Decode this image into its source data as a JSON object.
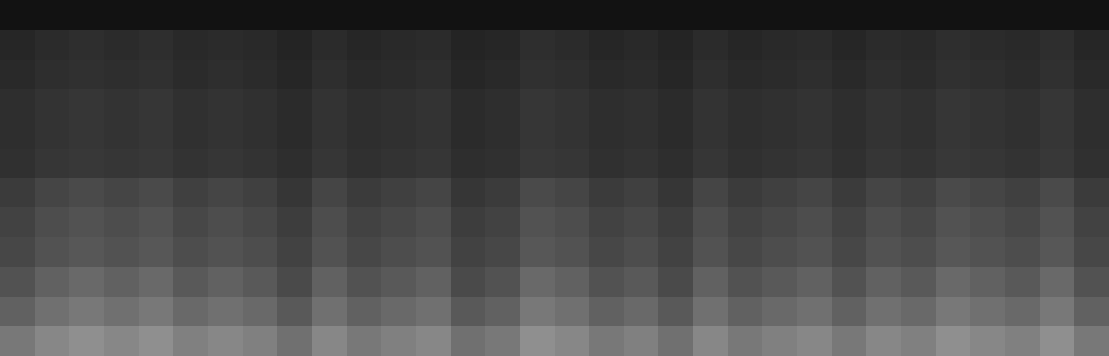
{
  "chart_data": {
    "type": "heatmap",
    "tick_labels": false,
    "zlim": [
      0,
      100
    ],
    "cells": [
      [
        7,
        7,
        7,
        7,
        7,
        7,
        7,
        7,
        7,
        7,
        7,
        7,
        7,
        7,
        7,
        7,
        7,
        7,
        7,
        7,
        7,
        7,
        7,
        7,
        7,
        7,
        7,
        7,
        7,
        7,
        7,
        7
      ],
      [
        15,
        17,
        18,
        17,
        18,
        16,
        17,
        16,
        14,
        17,
        15,
        16,
        17,
        14,
        15,
        18,
        17,
        15,
        16,
        14,
        17,
        15,
        16,
        17,
        15,
        17,
        16,
        18,
        17,
        16,
        18,
        15
      ],
      [
        16,
        18,
        19,
        18,
        19,
        17,
        18,
        17,
        15,
        18,
        16,
        17,
        18,
        15,
        16,
        19,
        18,
        16,
        17,
        15,
        18,
        16,
        17,
        18,
        16,
        18,
        17,
        19,
        18,
        17,
        19,
        16
      ],
      [
        18,
        20,
        21,
        20,
        21,
        19,
        20,
        19,
        17,
        20,
        18,
        19,
        20,
        17,
        18,
        21,
        20,
        18,
        19,
        17,
        20,
        18,
        19,
        20,
        18,
        20,
        19,
        21,
        20,
        19,
        21,
        18
      ],
      [
        18,
        20,
        21,
        20,
        21,
        19,
        20,
        19,
        17,
        20,
        18,
        19,
        20,
        17,
        18,
        21,
        20,
        18,
        19,
        17,
        20,
        18,
        19,
        20,
        18,
        20,
        19,
        21,
        20,
        19,
        21,
        18
      ],
      [
        19,
        21,
        22,
        21,
        22,
        20,
        21,
        20,
        18,
        21,
        19,
        20,
        21,
        18,
        19,
        22,
        21,
        19,
        20,
        18,
        21,
        19,
        20,
        21,
        19,
        21,
        20,
        22,
        21,
        20,
        22,
        19
      ],
      [
        23,
        27,
        29,
        27,
        29,
        25,
        27,
        25,
        21,
        27,
        23,
        25,
        27,
        21,
        23,
        29,
        27,
        23,
        25,
        21,
        27,
        23,
        25,
        27,
        23,
        27,
        25,
        29,
        27,
        25,
        29,
        23
      ],
      [
        26,
        30,
        32,
        30,
        32,
        28,
        30,
        28,
        24,
        30,
        26,
        28,
        30,
        24,
        26,
        32,
        30,
        26,
        28,
        24,
        30,
        26,
        28,
        30,
        26,
        30,
        28,
        32,
        30,
        28,
        32,
        26
      ],
      [
        28,
        32,
        34,
        32,
        34,
        30,
        32,
        30,
        26,
        32,
        28,
        30,
        32,
        26,
        28,
        34,
        32,
        28,
        30,
        26,
        32,
        28,
        30,
        32,
        28,
        32,
        30,
        34,
        32,
        30,
        34,
        28
      ],
      [
        32,
        38,
        41,
        38,
        41,
        35,
        38,
        35,
        29,
        38,
        32,
        35,
        38,
        29,
        32,
        41,
        38,
        32,
        35,
        29,
        38,
        32,
        35,
        38,
        32,
        38,
        35,
        41,
        38,
        35,
        41,
        32
      ],
      [
        38,
        44,
        47,
        44,
        47,
        41,
        44,
        41,
        35,
        44,
        38,
        41,
        44,
        35,
        38,
        47,
        44,
        38,
        41,
        35,
        44,
        38,
        41,
        44,
        38,
        44,
        41,
        47,
        44,
        41,
        47,
        38
      ],
      [
        47,
        53,
        56,
        53,
        56,
        50,
        53,
        50,
        44,
        53,
        47,
        50,
        53,
        44,
        47,
        56,
        53,
        47,
        50,
        44,
        53,
        47,
        50,
        53,
        47,
        53,
        50,
        56,
        53,
        50,
        56,
        47
      ]
    ]
  }
}
